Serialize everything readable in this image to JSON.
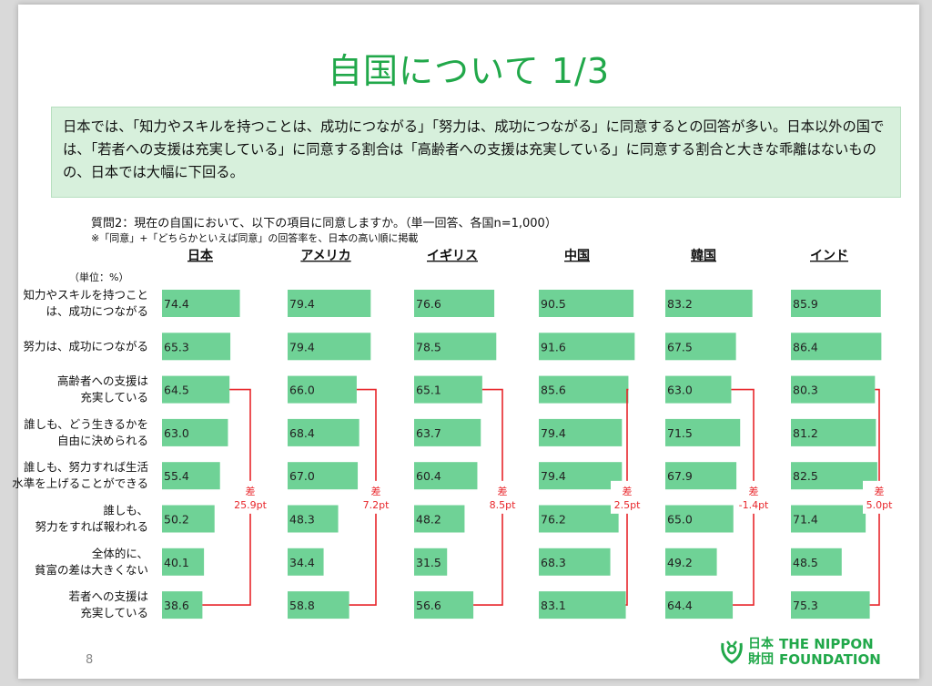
{
  "page": {
    "title": "自国について 1/3",
    "summary": "日本では、「知力やスキルを持つことは、成功につながる」「努力は、成功につながる」に同意するとの回答が多い。日本以外の国では、「若者への支援は充実している」に同意する割合は「高齢者への支援は充実している」に同意する割合と大きな乖離はないものの、日本では大幅に下回る。",
    "question": "質問2：現在の自国において、以下の項目に同意しますか。（単一回答、各国n=1,000）",
    "note": "※「同意」+「どちらかといえば同意」の回答率を、日本の高い順に掲載",
    "unit": "（単位：%）",
    "page_number": "8",
    "logo": {
      "jp": "日本\n財団",
      "en": "THE NIPPON\nFOUNDATION"
    }
  },
  "colors": {
    "bar": "#6fd296",
    "bracket": "#e8262b",
    "title": "#21a84a",
    "summary_bg": "#d7f0dc"
  },
  "chart_data": {
    "type": "bar",
    "orientation": "horizontal",
    "categories": [
      [
        "知力やスキルを持つこと",
        "は、成功につながる"
      ],
      [
        "努力は、成功につながる"
      ],
      [
        "高齢者への支援は",
        "充実している"
      ],
      [
        "誰しも、どう生きるかを",
        "自由に決められる"
      ],
      [
        "誰しも、努力すれば生活",
        "水準を上げることができる"
      ],
      [
        "誰しも、",
        "努力をすれば報われる"
      ],
      [
        "全体的に、",
        "貧富の差は大きくない"
      ],
      [
        "若者への支援は",
        "充実している"
      ]
    ],
    "series": [
      {
        "name": "日本",
        "values": [
          74.4,
          65.3,
          64.5,
          63.0,
          55.4,
          50.2,
          40.1,
          38.6
        ],
        "labels": [
          "74.4",
          "65.3",
          "64.5",
          "63.0",
          "55.4",
          "50.2",
          "40.1",
          "38.6"
        ],
        "diff_label": "25.9pt"
      },
      {
        "name": "アメリカ",
        "values": [
          79.4,
          79.4,
          66.0,
          68.4,
          67.0,
          48.3,
          34.4,
          58.8
        ],
        "labels": [
          "79.4",
          "79.4",
          "66.0",
          "68.4",
          "67.0",
          "48.3",
          "34.4",
          "58.8"
        ],
        "diff_label": "7.2pt"
      },
      {
        "name": "イギリス",
        "values": [
          76.6,
          78.5,
          65.1,
          63.7,
          60.4,
          48.2,
          31.5,
          56.6
        ],
        "labels": [
          "76.6",
          "78.5",
          "65.1",
          "63.7",
          "60.4",
          "48.2",
          "31.5",
          "56.6"
        ],
        "diff_label": "8.5pt"
      },
      {
        "name": "中国",
        "values": [
          90.5,
          91.6,
          85.6,
          79.4,
          79.4,
          76.2,
          68.3,
          83.1
        ],
        "labels": [
          "90.5",
          "91.6",
          "85.6",
          "79.4",
          "79.4",
          "76.2",
          "68.3",
          "83.1"
        ],
        "diff_label": "2.5pt"
      },
      {
        "name": "韓国",
        "values": [
          83.2,
          67.5,
          63.0,
          71.5,
          67.9,
          65.0,
          49.2,
          64.4
        ],
        "labels": [
          "83.2",
          "67.5",
          "63.0",
          "71.5",
          "67.9",
          "65.0",
          "49.2",
          "64.4"
        ],
        "diff_label": "-1.4pt"
      },
      {
        "name": "インド",
        "values": [
          85.9,
          86.4,
          80.3,
          81.2,
          82.5,
          71.4,
          48.5,
          75.3
        ],
        "labels": [
          "85.9",
          "86.4",
          "80.3",
          "81.2",
          "82.5",
          "71.4",
          "48.5",
          "75.3"
        ],
        "diff_label": "5.0pt"
      }
    ],
    "diff_bracket": {
      "from_category_index": 2,
      "to_category_index": 7,
      "char": "差"
    },
    "xlim": [
      0,
      100
    ],
    "grid": false,
    "legend": "none"
  }
}
